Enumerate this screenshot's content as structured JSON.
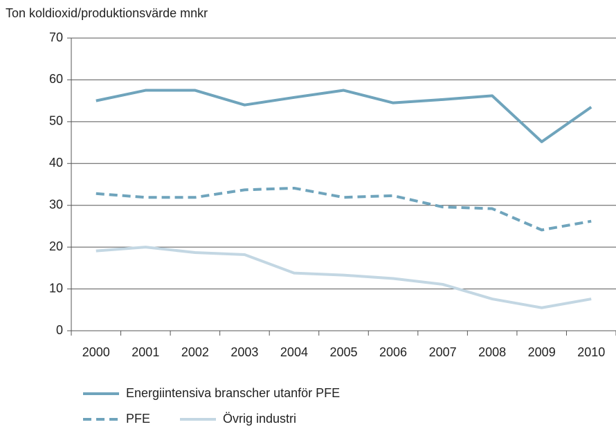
{
  "chart_data": {
    "type": "line",
    "y_label": "Ton koldioxid/produktionsvärde mnkr",
    "categories": [
      "2000",
      "2001",
      "2002",
      "2003",
      "2004",
      "2005",
      "2006",
      "2007",
      "2008",
      "2009",
      "2010"
    ],
    "series": [
      {
        "name": "Energiintensiva branscher utanför PFE",
        "color": "#6fa4bc",
        "style": "solid",
        "values": [
          55,
          57.5,
          57.5,
          54,
          55.8,
          57.5,
          54.5,
          55.3,
          56.2,
          45.2,
          53.5
        ]
      },
      {
        "name": "PFE",
        "color": "#6fa4bc",
        "style": "dashed",
        "values": [
          32.8,
          31.9,
          31.9,
          33.7,
          34.1,
          31.9,
          32.3,
          29.6,
          29.2,
          24.1,
          26.2
        ]
      },
      {
        "name": "Övrig industri",
        "color": "#c3d7e3",
        "style": "solid",
        "values": [
          19.1,
          20,
          18.7,
          18.2,
          13.8,
          13.3,
          12.5,
          11.1,
          7.6,
          5.5,
          7.6
        ]
      }
    ],
    "ylim": [
      0,
      70
    ],
    "yticks": [
      0,
      10,
      20,
      30,
      40,
      50,
      60,
      70
    ],
    "grid": true
  }
}
